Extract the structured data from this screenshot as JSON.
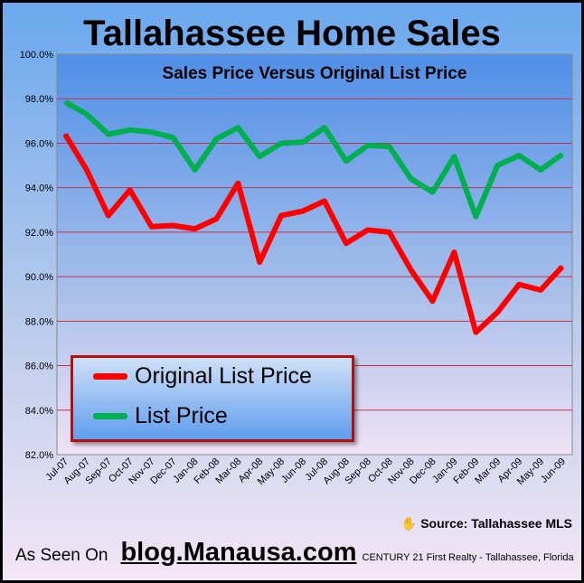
{
  "chart_data": {
    "type": "line",
    "title": "Tallahassee Home Sales",
    "subtitle": "Sales Price Versus Original List Price",
    "xlabel": "",
    "ylabel": "",
    "ylim": [
      82,
      100
    ],
    "y_ticks": [
      "82.0%",
      "84.0%",
      "86.0%",
      "88.0%",
      "90.0%",
      "92.0%",
      "94.0%",
      "96.0%",
      "98.0%",
      "100.0%"
    ],
    "grid": true,
    "legend_placement": "bottom-left",
    "categories": [
      "Jul-07",
      "Aug-07",
      "Sep-07",
      "Oct-07",
      "Nov-07",
      "Dec-07",
      "Jan-08",
      "Feb-08",
      "Mar-08",
      "Apr-08",
      "May-08",
      "Jun-08",
      "Jul-08",
      "Aug-08",
      "Sep-08",
      "Oct-08",
      "Nov-08",
      "Dec-08",
      "Jan-09",
      "Feb-09",
      "Mar-09",
      "Apr-09",
      "May-09",
      "Jun-09"
    ],
    "series": [
      {
        "name": "Original List Price",
        "color": "#ff0000",
        "values": [
          96.4,
          94.8,
          92.75,
          93.9,
          92.25,
          92.3,
          92.15,
          92.6,
          94.2,
          90.65,
          92.75,
          92.95,
          93.4,
          91.5,
          92.1,
          92.0,
          90.3,
          88.9,
          91.1,
          87.5,
          88.4,
          89.65,
          89.4,
          90.45
        ]
      },
      {
        "name": "List Price",
        "color": "#00b050",
        "values": [
          97.85,
          97.3,
          96.4,
          96.6,
          96.5,
          96.25,
          94.8,
          96.2,
          96.7,
          95.4,
          96.0,
          96.05,
          96.7,
          95.2,
          95.9,
          95.85,
          94.4,
          93.8,
          95.4,
          92.7,
          95.0,
          95.45,
          94.8,
          95.5
        ]
      }
    ]
  },
  "footer": {
    "source": "Source: Tallahassee MLS",
    "as_seen_on": "As Seen On",
    "site": "blog.Manausa.com",
    "company": "CENTURY  21 First Realty - Tallahassee,  Florida"
  }
}
